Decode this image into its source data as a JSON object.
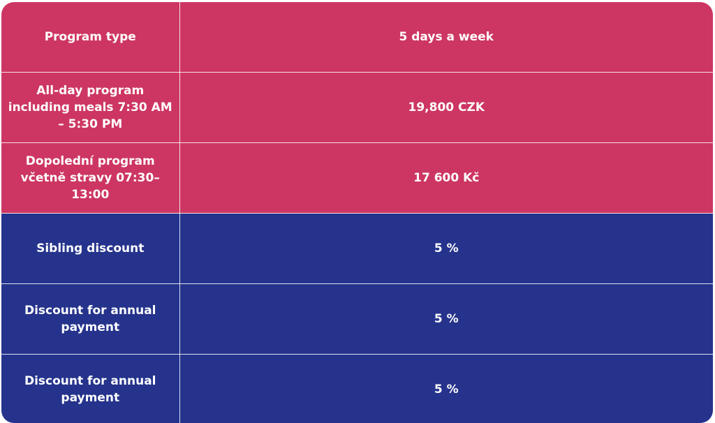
{
  "colors": {
    "pink_row": "#cd3662",
    "navy_row": "#25338c",
    "text": "#ffffff"
  },
  "table": {
    "rows": [
      {
        "label": "Program type",
        "value": "5 days a week",
        "style": "pink"
      },
      {
        "label": "All-day program including meals 7:30 AM – 5:30 PM",
        "value": "19,800 CZK",
        "style": "pink"
      },
      {
        "label": "Dopolední program včetně stravy 07:30–13:00",
        "value": "17 600 Kč",
        "style": "pink"
      },
      {
        "label": "Sibling discount",
        "value": "5 %",
        "style": "navy"
      },
      {
        "label": "Discount for annual payment",
        "value": "5 %",
        "style": "navy"
      },
      {
        "label": "Discount for annual payment",
        "value": "5 %",
        "style": "navy"
      }
    ]
  }
}
